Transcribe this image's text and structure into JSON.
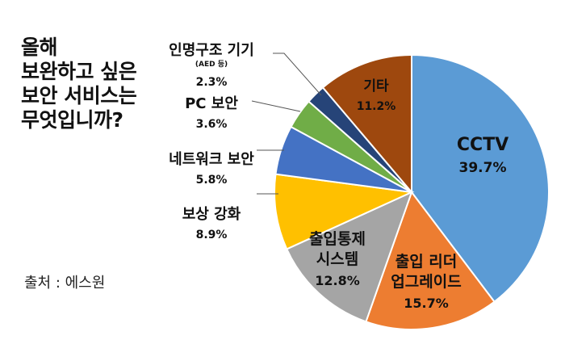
{
  "title_lines": [
    "올해",
    "보완하고 싶은",
    "보안 서비스는",
    "무엇입니까?"
  ],
  "source": "출처 : 에스원",
  "chart_data": {
    "type": "pie",
    "title": "올해 보완하고 싶은 보안 서비스는 무엇입니까?",
    "unit": "%",
    "slices": [
      {
        "key": "cctv",
        "lines": [
          "CCTV"
        ],
        "value": 39.7,
        "value_label": "39.7%",
        "color": "#5b9bd5",
        "text_color": "#111111"
      },
      {
        "key": "access-reader",
        "lines": [
          "출입 리더",
          "업그레이드"
        ],
        "value": 15.7,
        "value_label": "15.7%",
        "color": "#ed7d31",
        "text_color": "#111111"
      },
      {
        "key": "access-system",
        "lines": [
          "출입통제",
          "시스템"
        ],
        "value": 12.8,
        "value_label": "12.8%",
        "color": "#a5a5a5",
        "text_color": "#111111"
      },
      {
        "key": "compensation",
        "lines": [
          "보상 강화"
        ],
        "value": 8.9,
        "value_label": "8.9%",
        "color": "#ffc000",
        "text_color": "#111111"
      },
      {
        "key": "network",
        "lines": [
          "네트워크 보안"
        ],
        "value": 5.8,
        "value_label": "5.8%",
        "color": "#4472c4",
        "text_color": "#111111"
      },
      {
        "key": "pc",
        "lines": [
          "PC 보안"
        ],
        "value": 3.6,
        "value_label": "3.6%",
        "color": "#70ad47",
        "text_color": "#111111"
      },
      {
        "key": "life-saving",
        "lines": [
          "인명구조 기기",
          "(AED 등)"
        ],
        "value": 2.3,
        "value_label": "2.3%",
        "color": "#264478",
        "text_color": "#111111"
      },
      {
        "key": "other",
        "lines": [
          "기타"
        ],
        "value": 11.2,
        "value_label": "11.2%",
        "color": "#9e480e",
        "text_color": "#111111"
      }
    ]
  }
}
